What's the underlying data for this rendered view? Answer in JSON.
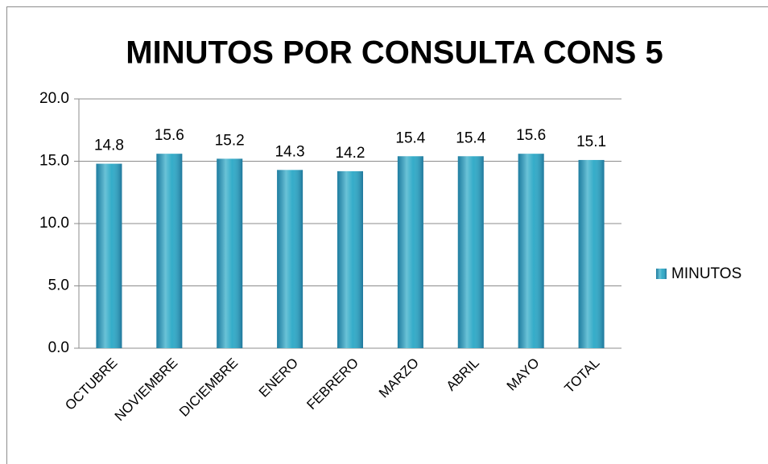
{
  "chart_data": {
    "type": "bar",
    "title": "MINUTOS POR CONSULTA CONS 5",
    "categories": [
      "OCTUBRE",
      "NOVIEMBRE",
      "DICIEMBRE",
      "ENERO",
      "FEBRERO",
      "MARZO",
      "ABRIL",
      "MAYO",
      "TOTAL"
    ],
    "series": [
      {
        "name": "MINUTOS",
        "color": "#2aa8c6",
        "values": [
          14.8,
          15.6,
          15.2,
          14.3,
          14.2,
          15.4,
          15.4,
          15.6,
          15.1
        ]
      }
    ],
    "ylim": [
      0,
      20
    ],
    "yticks": [
      {
        "value": 0,
        "label": "0.0"
      },
      {
        "value": 5,
        "label": "5.0"
      },
      {
        "value": 10,
        "label": "10.0"
      },
      {
        "value": 15,
        "label": "15.0"
      },
      {
        "value": 20,
        "label": "20.0"
      }
    ],
    "grid": true,
    "legend": "right"
  }
}
